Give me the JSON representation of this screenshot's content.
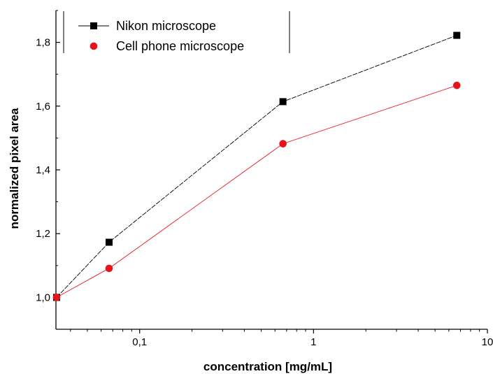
{
  "chart_data": {
    "type": "line",
    "xlabel": "concentration [mg/mL]",
    "ylabel": "normalized pixel area",
    "x_scale": "log",
    "xlim": [
      0.033,
      10
    ],
    "ylim": [
      0.9,
      1.9
    ],
    "x_ticks": [
      {
        "value": 0.1,
        "label": "0,1"
      },
      {
        "value": 1,
        "label": "1"
      },
      {
        "value": 10,
        "label": "10"
      }
    ],
    "y_ticks": [
      {
        "value": 1.0,
        "label": "1,0"
      },
      {
        "value": 1.2,
        "label": "1,2"
      },
      {
        "value": 1.4,
        "label": "1,4"
      },
      {
        "value": 1.6,
        "label": "1,6"
      },
      {
        "value": 1.8,
        "label": "1,8"
      }
    ],
    "x": [
      0.0333,
      0.0667,
      0.667,
      6.67
    ],
    "series": [
      {
        "name": "Nikon microscope",
        "marker": "square",
        "color": "#000000",
        "values": [
          1.0,
          1.173,
          1.614,
          1.822
        ]
      },
      {
        "name": "Cell phone microscope",
        "marker": "circle",
        "color": "#e8141b",
        "values": [
          1.0,
          1.091,
          1.482,
          1.665
        ]
      }
    ],
    "legend_position": "top-left",
    "grid": false
  }
}
